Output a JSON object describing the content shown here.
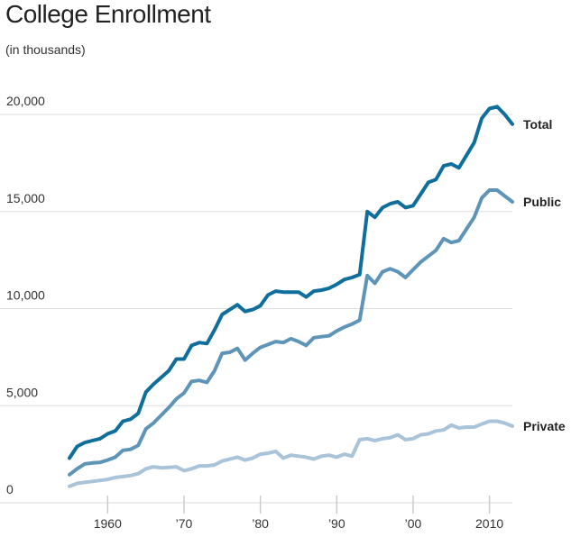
{
  "chart_data": {
    "type": "line",
    "title": "College Enrollment",
    "subtitle": "(in thousands)",
    "xlim": [
      1955,
      2013
    ],
    "ylim": [
      0,
      20000
    ],
    "y_ticks": [
      {
        "value": 0,
        "label": "0"
      },
      {
        "value": 5000,
        "label": "5,000"
      },
      {
        "value": 10000,
        "label": "10,000"
      },
      {
        "value": 15000,
        "label": "15,000"
      },
      {
        "value": 20000,
        "label": "20,000"
      }
    ],
    "x_ticks": [
      {
        "value": 1960,
        "label": "1960"
      },
      {
        "value": 1970,
        "label": "’70"
      },
      {
        "value": 1980,
        "label": "’80"
      },
      {
        "value": 1990,
        "label": "’90"
      },
      {
        "value": 2000,
        "label": "’00"
      },
      {
        "value": 2010,
        "label": "2010"
      }
    ],
    "x": [
      1955,
      1956,
      1957,
      1958,
      1959,
      1960,
      1961,
      1962,
      1963,
      1964,
      1965,
      1966,
      1967,
      1968,
      1969,
      1970,
      1971,
      1972,
      1973,
      1974,
      1975,
      1976,
      1977,
      1978,
      1979,
      1980,
      1981,
      1982,
      1983,
      1984,
      1985,
      1986,
      1987,
      1988,
      1989,
      1990,
      1991,
      1992,
      1993,
      1994,
      1995,
      1996,
      1997,
      1998,
      1999,
      2000,
      2001,
      2002,
      2003,
      2004,
      2005,
      2006,
      2007,
      2008,
      2009,
      2010,
      2011,
      2012,
      2013
    ],
    "series": [
      {
        "name": "Total",
        "color": "#0f6e9b",
        "values": [
          2300,
          2900,
          3100,
          3200,
          3300,
          3550,
          3700,
          4200,
          4300,
          4600,
          5700,
          6100,
          6450,
          6800,
          7400,
          7400,
          8100,
          8250,
          8200,
          8900,
          9700,
          9950,
          10200,
          9850,
          9950,
          10150,
          10700,
          10900,
          10850,
          10850,
          10850,
          10600,
          10900,
          10950,
          11050,
          11250,
          11500,
          11600,
          11750,
          15000,
          14700,
          15200,
          15400,
          15500,
          15200,
          15300,
          15900,
          16500,
          16650,
          17350,
          17450,
          17250,
          17900,
          18550,
          19800,
          20300,
          20400,
          20000,
          19500
        ]
      },
      {
        "name": "Public",
        "color": "#5e94b7",
        "values": [
          1450,
          1750,
          2000,
          2050,
          2080,
          2200,
          2350,
          2700,
          2750,
          2950,
          3800,
          4100,
          4500,
          4900,
          5350,
          5650,
          6250,
          6300,
          6200,
          6800,
          7700,
          7750,
          7950,
          7350,
          7700,
          8000,
          8150,
          8300,
          8250,
          8450,
          8300,
          8100,
          8500,
          8550,
          8600,
          8850,
          9050,
          9200,
          9400,
          11700,
          11300,
          11900,
          12050,
          11900,
          11600,
          12000,
          12400,
          12700,
          13000,
          13600,
          13400,
          13500,
          14100,
          14700,
          15700,
          16100,
          16100,
          15800,
          15500
        ]
      },
      {
        "name": "Private",
        "color": "#a9c3d9",
        "values": [
          850,
          1000,
          1050,
          1100,
          1150,
          1200,
          1300,
          1350,
          1400,
          1500,
          1750,
          1850,
          1800,
          1820,
          1850,
          1650,
          1750,
          1900,
          1900,
          1950,
          2150,
          2250,
          2350,
          2200,
          2300,
          2500,
          2550,
          2650,
          2300,
          2450,
          2400,
          2350,
          2250,
          2400,
          2450,
          2350,
          2500,
          2400,
          3250,
          3300,
          3200,
          3300,
          3350,
          3500,
          3250,
          3300,
          3500,
          3550,
          3700,
          3750,
          4000,
          3850,
          3900,
          3900,
          4050,
          4200,
          4200,
          4100,
          3950
        ]
      }
    ],
    "legend": "inline-right"
  }
}
